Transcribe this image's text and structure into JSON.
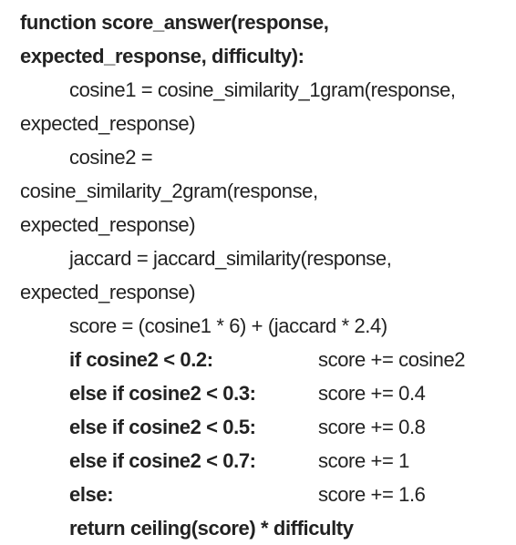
{
  "code": {
    "lines": [
      "function score_answer(response,",
      "expected_response, difficulty):",
      "cosine1 = cosine_similarity_1gram(response,",
      "expected_response)",
      "cosine2 =",
      "cosine_similarity_2gram(response,",
      "expected_response)",
      "jaccard = jaccard_similarity(response,",
      "expected_response)",
      "score = (cosine1 * 6) + (jaccard * 2.4)"
    ],
    "branches": [
      {
        "condition": "if cosine2 < 0.2:",
        "action": "score += cosine2"
      },
      {
        "condition": "else if cosine2 < 0.3:",
        "action": "score += 0.4"
      },
      {
        "condition": "else if cosine2 < 0.5:",
        "action": "score += 0.8"
      },
      {
        "condition": "else if cosine2 < 0.7:",
        "action": "score += 1"
      },
      {
        "condition": "else:",
        "action": "score += 1.6"
      }
    ],
    "return_line": "return ceiling(score) * difficulty"
  }
}
